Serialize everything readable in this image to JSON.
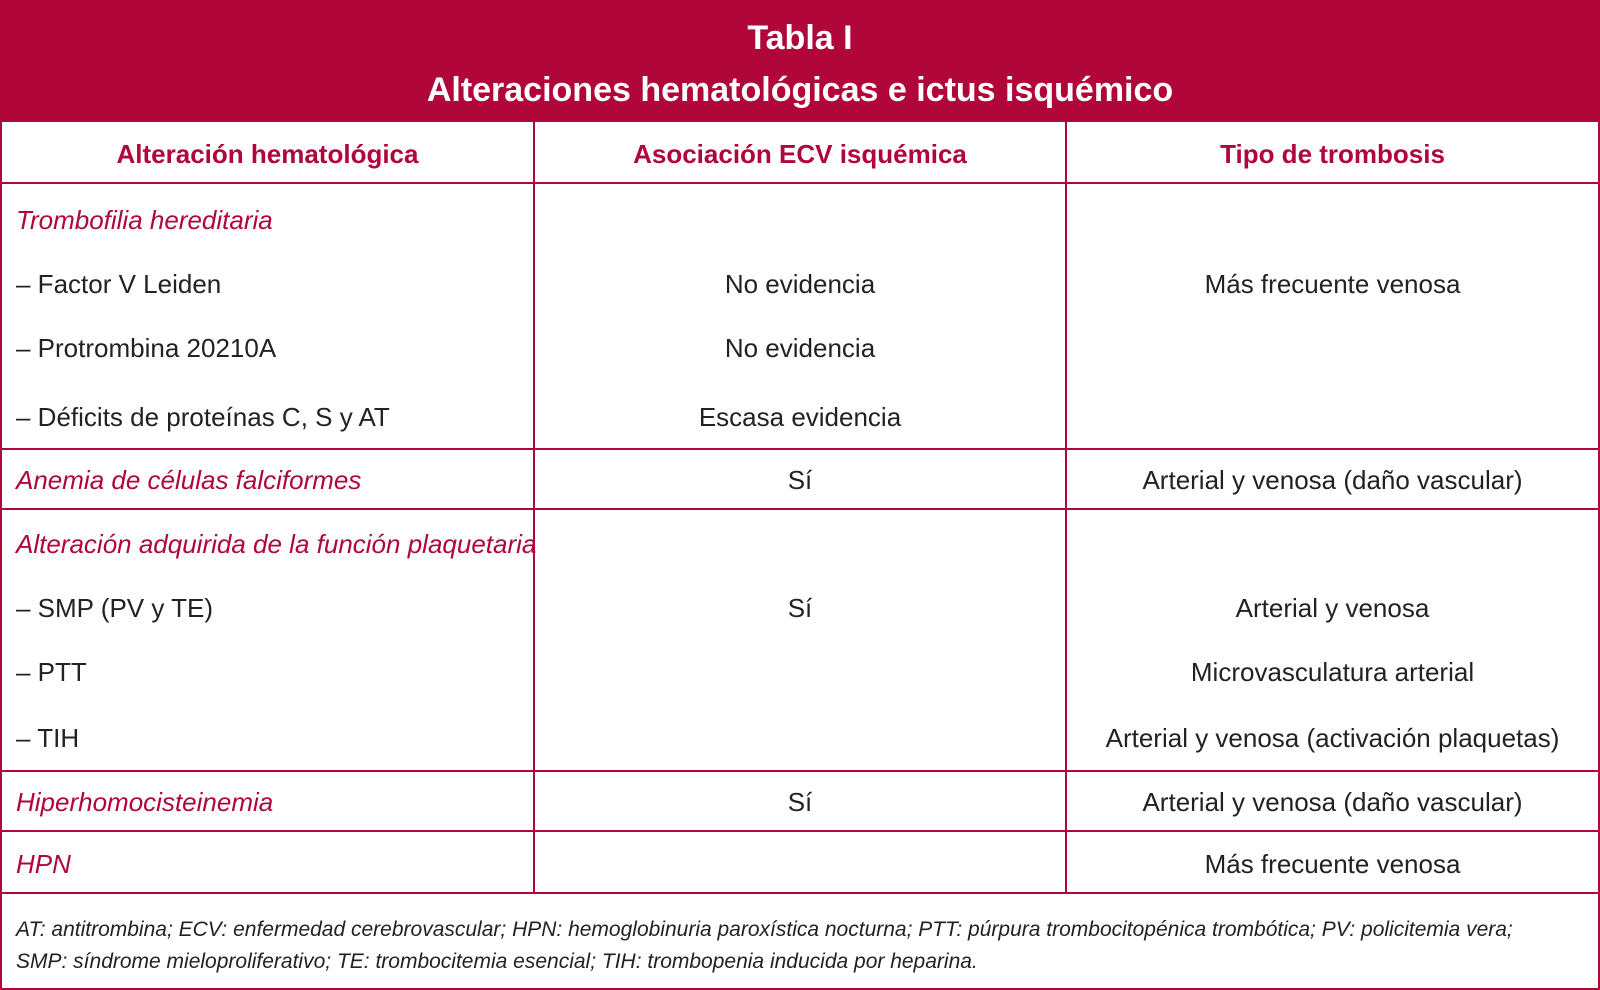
{
  "title": {
    "line1": "Tabla I",
    "line2": "Alteraciones hematológicas e ictus isquémico"
  },
  "headers": [
    "Alteración hematológica",
    "Asociación ECV isquémica",
    "Tipo de trombosis"
  ],
  "sections": {
    "trombofilia": {
      "category": "Trombofilia hereditaria",
      "rows": [
        {
          "label": "–  Factor V Leiden",
          "assoc": "No evidencia",
          "tipo": "Más frecuente venosa"
        },
        {
          "label": "–  Protrombina 20210A",
          "assoc": "No evidencia",
          "tipo": ""
        },
        {
          "label": "–  Déficits de proteínas C, S y AT",
          "assoc": "Escasa evidencia",
          "tipo": ""
        }
      ]
    },
    "anemia": {
      "category": "Anemia de células falciformes",
      "assoc": "Sí",
      "tipo": "Arterial y venosa (daño vascular)"
    },
    "plaquetaria": {
      "category": "Alteración adquirida de la función plaquetaria",
      "assoc": "Sí",
      "rows": [
        {
          "label": "–  SMP (PV y TE)",
          "tipo": "Arterial y venosa"
        },
        {
          "label": "–  PTT",
          "tipo": "Microvasculatura arterial"
        },
        {
          "label": "–  TIH",
          "tipo": "Arterial y venosa (activación plaquetas)"
        }
      ]
    },
    "hiperhomo": {
      "category": "Hiperhomocisteinemia",
      "assoc": "Sí",
      "tipo": "Arterial y venosa (daño vascular)"
    },
    "hpn": {
      "category": "HPN",
      "assoc": "",
      "tipo": "Más frecuente venosa"
    }
  },
  "footnote": {
    "line1": "AT: antitrombina; ECV: enfermedad cerebrovascular; HPN: hemoglobinuria paroxística nocturna; PTT: púrpura trombocitopénica trombótica; PV: policitemia vera;",
    "line2": "SMP: síndrome mieloproliferativo; TE: trombocitemia esencial; TIH: trombopenia inducida por heparina."
  },
  "colors": {
    "accent": "#b0063a",
    "text": "#222222"
  }
}
